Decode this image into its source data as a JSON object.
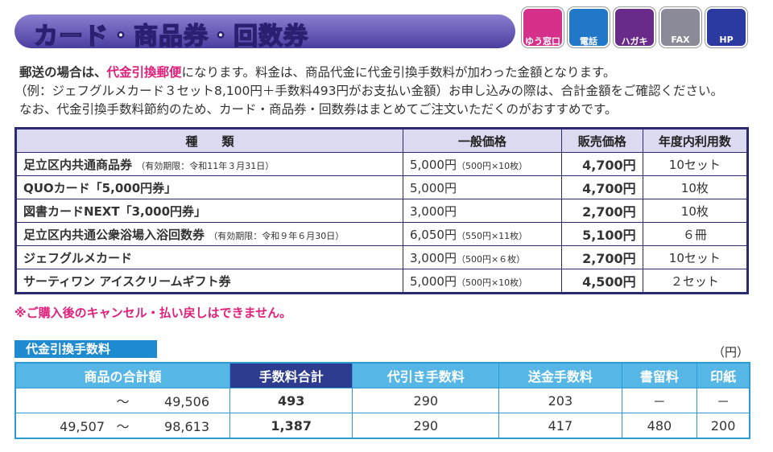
{
  "header": {
    "title": "カード・商品券・回数券",
    "icons": [
      "ゆう窓口",
      "電話",
      "ハガキ",
      "FAX",
      "HP"
    ]
  },
  "intro": {
    "line1": {
      "lead": "郵送の場合は、",
      "highlight": "代金引換郵便",
      "rest": "になります。料金は、商品代金に代金引換手数料が加わった金額となります。"
    },
    "line2": "（例：ジェフグルメカード３セット8,100円＋手数料493円がお支払い金額）お申し込みの際は、合計金額をご確認ください。",
    "line3": "なお、代金引換手数料節約のため、カード・商品券・回数券はまとめてご注文いただくのがおすすめです。"
  },
  "table": {
    "headers": [
      "種　　類",
      "一般価格",
      "販売価格",
      "年度内利用数"
    ],
    "rows": [
      {
        "name": "足立区内共通商品券",
        "name_note": "（有効期限：令和11年３月31日）",
        "price": "5,000円",
        "price_note": "（500円×10枚）",
        "sale": "4,700円",
        "count": "10セット"
      },
      {
        "name": "QUOカード「5,000円券」",
        "price": "5,000円",
        "sale": "4,700円",
        "count": "10枚"
      },
      {
        "name": "図書カードNEXT「3,000円券」",
        "price": "3,000円",
        "sale": "2,700円",
        "count": "10枚"
      },
      {
        "name": "足立区内共通公衆浴場入浴回数券",
        "name_note": "（有効期限：令和９年６月30日）",
        "price": "6,050円",
        "price_note": "（550円×11枚）",
        "sale": "5,100円",
        "count": "６冊"
      },
      {
        "name": "ジェフグルメカード",
        "price": "3,000円",
        "price_note": "（500円×６枚）",
        "sale": "2,700円",
        "count": "10セット"
      },
      {
        "name": "サーティワン アイスクリームギフト券",
        "price": "5,000円",
        "price_note": "（500円×10枚）",
        "sale": "4,500円",
        "count": "２セット"
      }
    ],
    "note": "※ご購入後のキャンセル・払い戻しはできません。"
  },
  "fees": {
    "title": "代金引換手数料",
    "unit": "（円）",
    "headers": [
      "商品の合計額",
      "手数料合計",
      "代引き手数料",
      "送金手数料",
      "書留料",
      "印紙"
    ],
    "rows": [
      {
        "sep": "～",
        "to": "49,506",
        "total": "493",
        "cod": "290",
        "remit": "203",
        "registered": "－",
        "stamp": "－"
      },
      {
        "from": "49,507",
        "sep": "～",
        "to": "98,613",
        "total": "1,387",
        "cod": "290",
        "remit": "417",
        "registered": "480",
        "stamp": "200"
      }
    ]
  }
}
